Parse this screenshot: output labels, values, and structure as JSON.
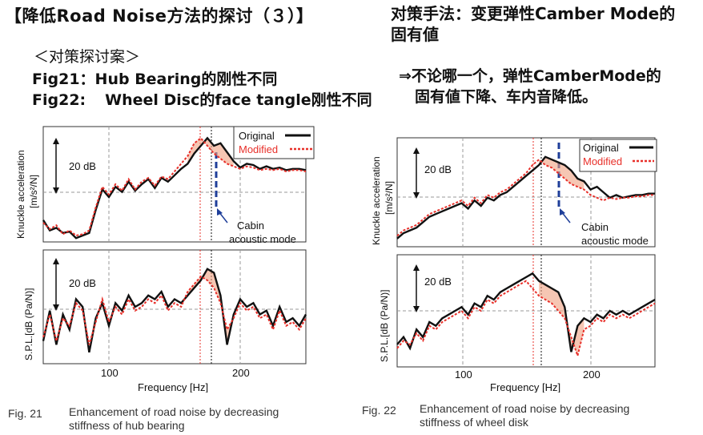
{
  "header": {
    "title": "【降低Road Noise方法的探讨（３）】",
    "countermeasure_line1": "对策手法：变更弹性Camber Mode的",
    "countermeasure_line2": "固有値"
  },
  "proposal": {
    "heading": "＜对策探讨案＞",
    "fig21_label": "Fig21：",
    "fig21_text": "Hub Bearing的刚性不同",
    "fig22_label": "Fig22:",
    "fig22_text": "Wheel Disc的face tangle刚性不同"
  },
  "conclusion": {
    "line1": "⇒不论哪一个，弹性CamberMode的",
    "line2": "固有値下降、车内音降低。"
  },
  "figures": [
    {
      "upper_ylabel_1": "Knuckle acceleration",
      "upper_ylabel_2": "[m/s²/N]",
      "lower_ylabel": "S.P.L.[dB (Pa/N)]",
      "db_label_upper": "20 dB",
      "db_label_lower": "20 dB",
      "legend_original": "Original",
      "legend_modified": "Modified",
      "annotation_1": "Cabin",
      "annotation_2": "acoustic mode",
      "x_ticks": [
        "100",
        "200"
      ],
      "xlabel": "Frequency [Hz]",
      "caption_num": "Fig. 21",
      "caption_line1": "Enhancement of road noise by decreasing",
      "caption_line2": "stiffness of hub bearing"
    },
    {
      "upper_ylabel_1": "Knuckle acceleration",
      "upper_ylabel_2": "[m/s²/N]",
      "lower_ylabel": "S.P.L.[dB (Pa/N)]",
      "db_label_upper": "20 dB",
      "db_label_lower": "20 dB",
      "legend_original": "Original",
      "legend_modified": "Modified",
      "annotation_1": "Cabin",
      "annotation_2": "acoustic mode",
      "x_ticks": [
        "100",
        "200"
      ],
      "xlabel": "Frequency [Hz]",
      "caption_num": "Fig. 22",
      "caption_line1": "Enhancement of road noise by decreasing",
      "caption_line2": "stiffness of wheel disk"
    }
  ],
  "colors": {
    "original": "#111111",
    "modified": "#e8302a",
    "cabin_mode": "#1f3f9a",
    "fill": "#f0a080"
  },
  "chart_data": [
    {
      "type": "line",
      "panel": "Fig. 21 upper",
      "xlabel": "Frequency [Hz]",
      "ylabel": "Knuckle acceleration [m/s²/N]",
      "xlim": [
        50,
        250
      ],
      "series": [
        {
          "name": "Original",
          "x": [
            50,
            55,
            60,
            65,
            70,
            75,
            80,
            85,
            90,
            95,
            100,
            105,
            110,
            115,
            120,
            125,
            130,
            135,
            140,
            145,
            150,
            155,
            160,
            165,
            170,
            175,
            180,
            185,
            190,
            195,
            200,
            205,
            210,
            215,
            220,
            225,
            230,
            235,
            240,
            245,
            250
          ],
          "y": [
            -38,
            -46,
            -44,
            -48,
            -47,
            -52,
            -50,
            -48,
            -30,
            -14,
            -20,
            -12,
            -16,
            -8,
            -15,
            -10,
            -6,
            -13,
            -5,
            -8,
            -3,
            2,
            6,
            14,
            20,
            26,
            20,
            22,
            15,
            8,
            3,
            6,
            5,
            2,
            4,
            2,
            3,
            1,
            2,
            2,
            1
          ]
        },
        {
          "name": "Modified",
          "x": [
            50,
            55,
            60,
            65,
            70,
            75,
            80,
            85,
            90,
            95,
            100,
            105,
            110,
            115,
            120,
            125,
            130,
            135,
            140,
            145,
            150,
            155,
            160,
            165,
            170,
            175,
            180,
            185,
            190,
            195,
            200,
            205,
            210,
            215,
            220,
            225,
            230,
            235,
            240,
            245,
            250
          ],
          "y": [
            -40,
            -45,
            -42,
            -49,
            -46,
            -50,
            -49,
            -46,
            -28,
            -12,
            -18,
            -10,
            -15,
            -6,
            -14,
            -8,
            -5,
            -11,
            -4,
            -6,
            0,
            6,
            12,
            22,
            26,
            20,
            14,
            10,
            6,
            4,
            2,
            4,
            3,
            1,
            2,
            1,
            2,
            0,
            1,
            1,
            0
          ]
        }
      ]
    },
    {
      "type": "line",
      "panel": "Fig. 21 lower",
      "xlabel": "Frequency [Hz]",
      "ylabel": "S.P.L. [dB (Pa/N)]",
      "xlim": [
        50,
        250
      ],
      "series": [
        {
          "name": "Original",
          "x": [
            50,
            55,
            60,
            65,
            70,
            75,
            80,
            85,
            90,
            95,
            100,
            105,
            110,
            115,
            120,
            125,
            130,
            135,
            140,
            145,
            150,
            155,
            160,
            165,
            170,
            175,
            180,
            185,
            190,
            195,
            200,
            205,
            210,
            215,
            220,
            225,
            230,
            235,
            240,
            245,
            250
          ],
          "y": [
            -28,
            -12,
            -30,
            -14,
            -22,
            -6,
            -10,
            -34,
            -16,
            -8,
            -20,
            -8,
            -12,
            -4,
            -10,
            -8,
            -4,
            -6,
            -2,
            -10,
            -6,
            -8,
            -4,
            0,
            4,
            10,
            8,
            -4,
            -30,
            -14,
            -6,
            -10,
            -8,
            -14,
            -12,
            -20,
            -10,
            -18,
            -16,
            -20,
            -14
          ]
        },
        {
          "name": "Modified",
          "x": [
            50,
            55,
            60,
            65,
            70,
            75,
            80,
            85,
            90,
            95,
            100,
            105,
            110,
            115,
            120,
            125,
            130,
            135,
            140,
            145,
            150,
            155,
            160,
            165,
            170,
            175,
            180,
            185,
            190,
            195,
            200,
            205,
            210,
            215,
            220,
            225,
            230,
            235,
            240,
            245,
            250
          ],
          "y": [
            -26,
            -14,
            -28,
            -16,
            -20,
            -8,
            -12,
            -30,
            -18,
            -6,
            -18,
            -10,
            -14,
            -6,
            -12,
            -10,
            -6,
            -8,
            -4,
            -12,
            -8,
            -10,
            -2,
            2,
            6,
            4,
            0,
            -8,
            -22,
            -16,
            -8,
            -12,
            -10,
            -16,
            -14,
            -22,
            -12,
            -20,
            -18,
            -22,
            -16
          ]
        }
      ]
    },
    {
      "type": "line",
      "panel": "Fig. 22 upper",
      "xlabel": "Frequency [Hz]",
      "ylabel": "Knuckle acceleration [m/s²/N]",
      "xlim": [
        50,
        250
      ],
      "series": [
        {
          "name": "Original",
          "x": [
            50,
            55,
            60,
            65,
            70,
            75,
            80,
            85,
            90,
            95,
            100,
            105,
            110,
            115,
            120,
            125,
            130,
            135,
            140,
            145,
            150,
            155,
            160,
            165,
            170,
            175,
            180,
            185,
            190,
            195,
            200,
            205,
            210,
            215,
            220,
            225,
            230,
            235,
            240,
            245,
            250
          ],
          "y": [
            -34,
            -30,
            -28,
            -26,
            -22,
            -18,
            -16,
            -14,
            -12,
            -10,
            -8,
            -12,
            -6,
            -10,
            -4,
            -6,
            -2,
            0,
            4,
            8,
            12,
            16,
            20,
            26,
            24,
            22,
            20,
            16,
            10,
            8,
            2,
            4,
            0,
            -4,
            -2,
            -4,
            -3,
            -2,
            -2,
            -1,
            -1
          ]
        },
        {
          "name": "Modified",
          "x": [
            50,
            55,
            60,
            65,
            70,
            75,
            80,
            85,
            90,
            95,
            100,
            105,
            110,
            115,
            120,
            125,
            130,
            135,
            140,
            145,
            150,
            155,
            160,
            165,
            170,
            175,
            180,
            185,
            190,
            195,
            200,
            205,
            210,
            215,
            220,
            225,
            230,
            235,
            240,
            245,
            250
          ],
          "y": [
            -32,
            -28,
            -26,
            -24,
            -20,
            -16,
            -14,
            -12,
            -10,
            -8,
            -6,
            -10,
            -4,
            -8,
            -2,
            -4,
            0,
            2,
            6,
            10,
            14,
            20,
            24,
            20,
            18,
            14,
            10,
            6,
            4,
            2,
            -2,
            -4,
            -6,
            -4,
            -5,
            -4,
            -4,
            -3,
            -3,
            -2,
            -2
          ]
        }
      ]
    },
    {
      "type": "line",
      "panel": "Fig. 22 lower",
      "xlabel": "Frequency [Hz]",
      "ylabel": "S.P.L. [dB (Pa/N)]",
      "xlim": [
        50,
        250
      ],
      "series": [
        {
          "name": "Original",
          "x": [
            50,
            55,
            60,
            65,
            70,
            75,
            80,
            85,
            90,
            95,
            100,
            105,
            110,
            115,
            120,
            125,
            130,
            135,
            140,
            145,
            150,
            155,
            160,
            165,
            170,
            175,
            180,
            185,
            190,
            195,
            200,
            205,
            210,
            215,
            220,
            225,
            230,
            235,
            240,
            245,
            250
          ],
          "y": [
            -24,
            -20,
            -26,
            -16,
            -20,
            -12,
            -14,
            -10,
            -8,
            -6,
            -4,
            -8,
            -2,
            -4,
            2,
            0,
            4,
            6,
            8,
            10,
            12,
            14,
            10,
            8,
            6,
            4,
            -4,
            -28,
            -14,
            -10,
            -12,
            -8,
            -10,
            -6,
            -8,
            -6,
            -8,
            -6,
            -4,
            -2,
            0
          ]
        },
        {
          "name": "Modified",
          "x": [
            50,
            55,
            60,
            65,
            70,
            75,
            80,
            85,
            90,
            95,
            100,
            105,
            110,
            115,
            120,
            125,
            130,
            135,
            140,
            145,
            150,
            155,
            160,
            165,
            170,
            175,
            180,
            185,
            190,
            195,
            200,
            205,
            210,
            215,
            220,
            225,
            230,
            235,
            240,
            245,
            250
          ],
          "y": [
            -26,
            -22,
            -24,
            -18,
            -22,
            -14,
            -16,
            -12,
            -10,
            -8,
            -6,
            -10,
            -4,
            -6,
            0,
            -2,
            2,
            4,
            6,
            8,
            10,
            6,
            2,
            0,
            -2,
            -6,
            -10,
            -20,
            -30,
            -16,
            -14,
            -10,
            -12,
            -8,
            -10,
            -8,
            -10,
            -8,
            -6,
            -4,
            -2
          ]
        }
      ]
    }
  ]
}
